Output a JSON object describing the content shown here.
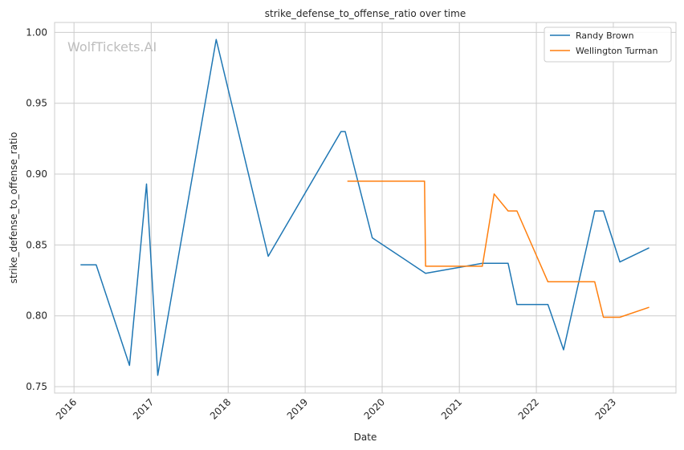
{
  "chart_data": {
    "type": "line",
    "title": "strike_defense_to_offense_ratio over time",
    "xlabel": "Date",
    "ylabel": "strike_defense_to_offense_ratio",
    "watermark": "WolfTickets.AI",
    "xlim": [
      "2015-10-01",
      "2023-10-25"
    ],
    "ylim": [
      0.7455,
      1.007
    ],
    "x_ticks": [
      "2016-01-01",
      "2017-01-01",
      "2018-01-01",
      "2019-01-01",
      "2020-01-01",
      "2021-01-01",
      "2022-01-01",
      "2023-01-01"
    ],
    "x_tick_labels": [
      "2016",
      "2017",
      "2018",
      "2019",
      "2020",
      "2021",
      "2022",
      "2023"
    ],
    "y_ticks": [
      0.75,
      0.8,
      0.85,
      0.9,
      0.95,
      1.0
    ],
    "y_tick_labels": [
      "0.75",
      "0.80",
      "0.85",
      "0.90",
      "0.95",
      "1.00"
    ],
    "grid": true,
    "legend_position": "top-right",
    "series": [
      {
        "name": "Randy Brown",
        "color": "#1f77b4",
        "points": [
          {
            "x": "2016-02-01",
            "y": 0.836
          },
          {
            "x": "2016-04-15",
            "y": 0.836
          },
          {
            "x": "2016-09-20",
            "y": 0.765
          },
          {
            "x": "2016-12-10",
            "y": 0.893
          },
          {
            "x": "2017-02-01",
            "y": 0.758
          },
          {
            "x": "2017-11-05",
            "y": 0.995
          },
          {
            "x": "2018-07-10",
            "y": 0.842
          },
          {
            "x": "2019-06-20",
            "y": 0.93
          },
          {
            "x": "2019-07-10",
            "y": 0.93
          },
          {
            "x": "2019-11-15",
            "y": 0.855
          },
          {
            "x": "2020-07-25",
            "y": 0.83
          },
          {
            "x": "2021-04-20",
            "y": 0.837
          },
          {
            "x": "2021-08-20",
            "y": 0.837
          },
          {
            "x": "2021-10-01",
            "y": 0.808
          },
          {
            "x": "2022-02-25",
            "y": 0.808
          },
          {
            "x": "2022-05-10",
            "y": 0.776
          },
          {
            "x": "2022-10-05",
            "y": 0.874
          },
          {
            "x": "2022-11-15",
            "y": 0.874
          },
          {
            "x": "2023-02-01",
            "y": 0.838
          },
          {
            "x": "2023-06-20",
            "y": 0.848
          }
        ]
      },
      {
        "name": "Wellington Turman",
        "color": "#ff7f0e",
        "points": [
          {
            "x": "2019-07-20",
            "y": 0.895
          },
          {
            "x": "2020-07-20",
            "y": 0.895
          },
          {
            "x": "2020-07-25",
            "y": 0.835
          },
          {
            "x": "2021-04-20",
            "y": 0.835
          },
          {
            "x": "2021-06-15",
            "y": 0.886
          },
          {
            "x": "2021-08-20",
            "y": 0.874
          },
          {
            "x": "2021-10-01",
            "y": 0.874
          },
          {
            "x": "2022-02-25",
            "y": 0.824
          },
          {
            "x": "2022-10-05",
            "y": 0.824
          },
          {
            "x": "2022-11-15",
            "y": 0.799
          },
          {
            "x": "2023-02-01",
            "y": 0.799
          },
          {
            "x": "2023-06-20",
            "y": 0.806
          }
        ]
      }
    ]
  }
}
